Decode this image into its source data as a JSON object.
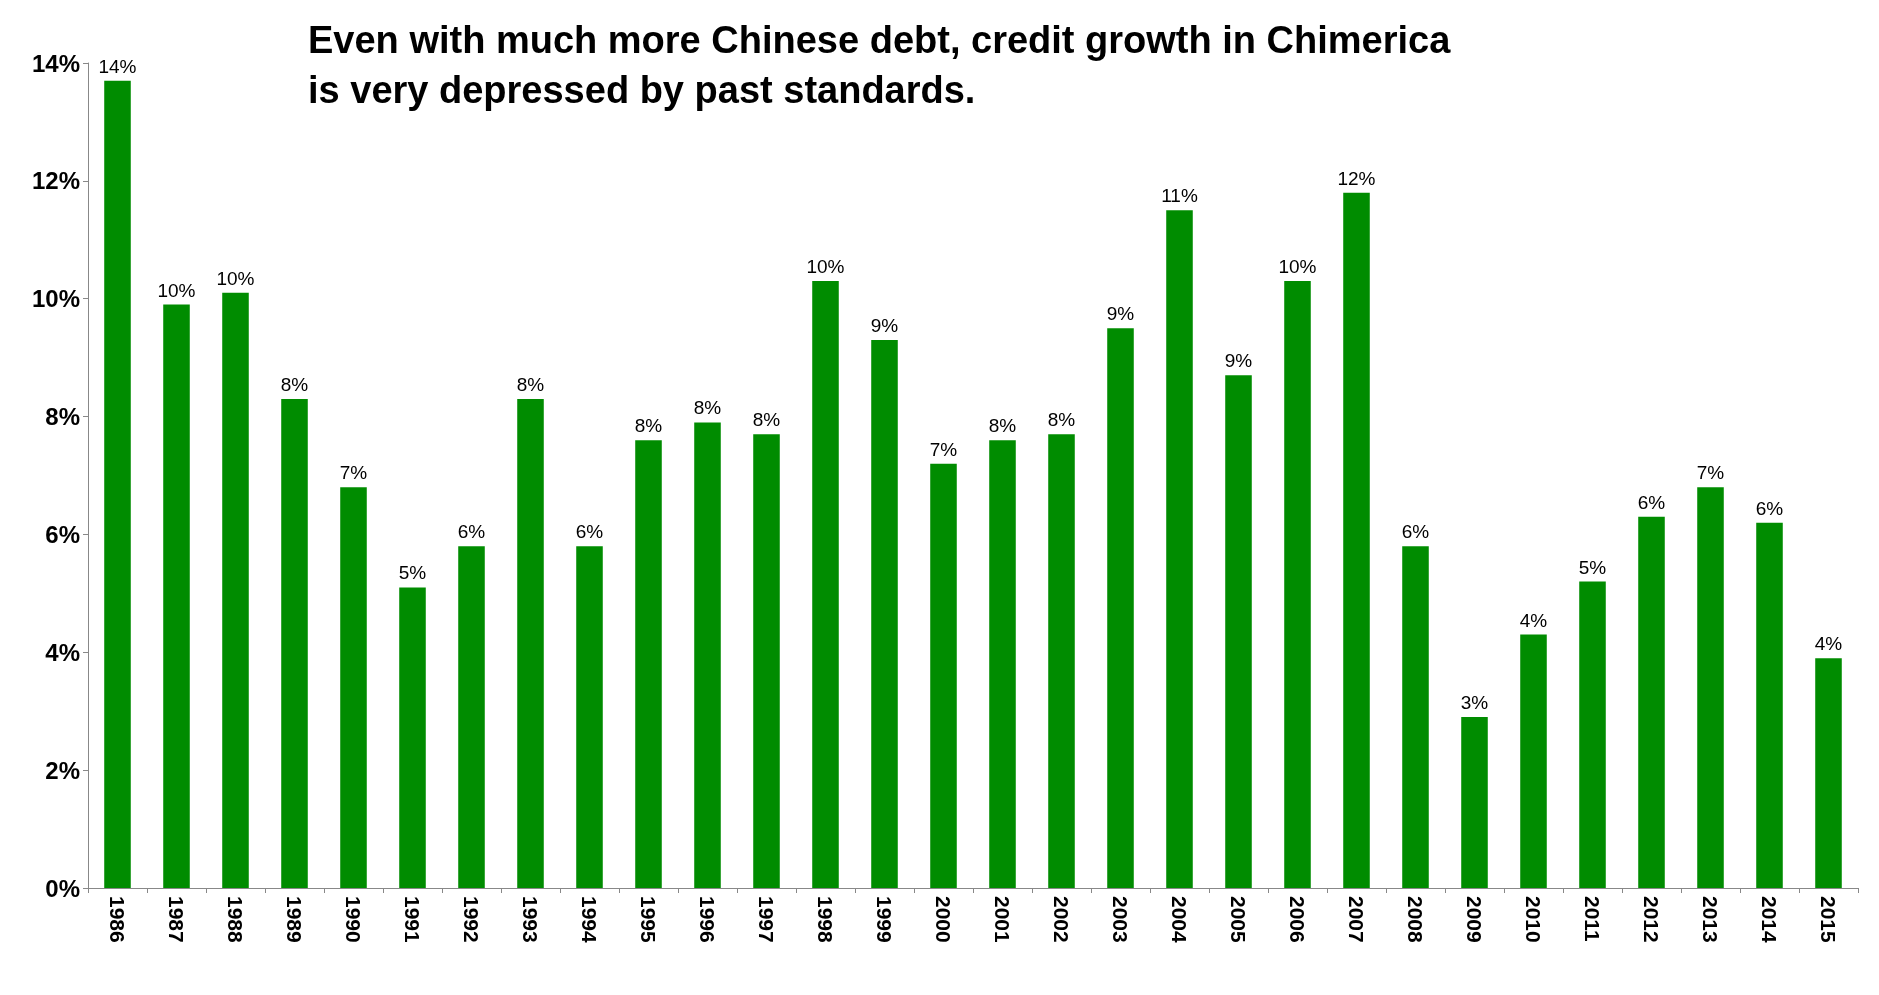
{
  "chart_data": {
    "type": "bar",
    "title": "Even with much more Chinese debt, credit growth in Chimerica\nis very depressed by past standards.",
    "categories": [
      "1986",
      "1987",
      "1988",
      "1989",
      "1990",
      "1991",
      "1992",
      "1993",
      "1994",
      "1995",
      "1996",
      "1997",
      "1998",
      "1999",
      "2000",
      "2001",
      "2002",
      "2003",
      "2004",
      "2005",
      "2006",
      "2007",
      "2008",
      "2009",
      "2010",
      "2011",
      "2012",
      "2013",
      "2014",
      "2015"
    ],
    "values": [
      13.7,
      9.9,
      10.1,
      8.3,
      6.8,
      5.1,
      5.8,
      8.3,
      5.8,
      7.6,
      7.9,
      7.7,
      10.3,
      9.3,
      7.2,
      7.6,
      7.7,
      9.5,
      11.5,
      8.7,
      10.3,
      11.8,
      5.8,
      2.9,
      4.3,
      5.2,
      6.3,
      6.8,
      6.2,
      3.9
    ],
    "value_labels": [
      "14%",
      "10%",
      "10%",
      "8%",
      "7%",
      "5%",
      "6%",
      "8%",
      "6%",
      "8%",
      "8%",
      "8%",
      "10%",
      "9%",
      "7%",
      "8%",
      "8%",
      "9%",
      "11%",
      "9%",
      "10%",
      "12%",
      "6%",
      "3%",
      "4%",
      "5%",
      "6%",
      "7%",
      "6%",
      "4%"
    ],
    "color": "#008c00",
    "ylim": [
      0,
      14
    ],
    "yticks": [
      {
        "value": 0,
        "label": "0%"
      },
      {
        "value": 2,
        "label": "2%"
      },
      {
        "value": 4,
        "label": "4%"
      },
      {
        "value": 6,
        "label": "6%"
      },
      {
        "value": 8,
        "label": "8%"
      },
      {
        "value": 10,
        "label": "10%"
      },
      {
        "value": 12,
        "label": "12%"
      },
      {
        "value": 14,
        "label": "14%"
      }
    ],
    "grid": false
  }
}
